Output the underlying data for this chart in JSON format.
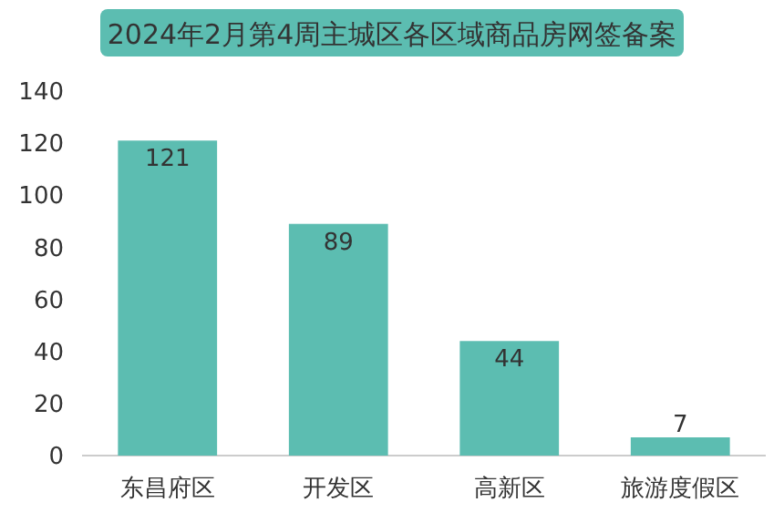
{
  "chart_data": {
    "type": "bar",
    "title": "2024年2月第4周主城区各区域商品房网签备案",
    "categories": [
      "东昌府区",
      "开发区",
      "高新区",
      "旅游度假区"
    ],
    "values": [
      121,
      89,
      44,
      7
    ],
    "color": "#5cbdb1",
    "ylim": [
      0,
      140
    ],
    "yticks": [
      0,
      20,
      40,
      60,
      80,
      100,
      120,
      140
    ],
    "grid": false,
    "data_labels": true
  }
}
